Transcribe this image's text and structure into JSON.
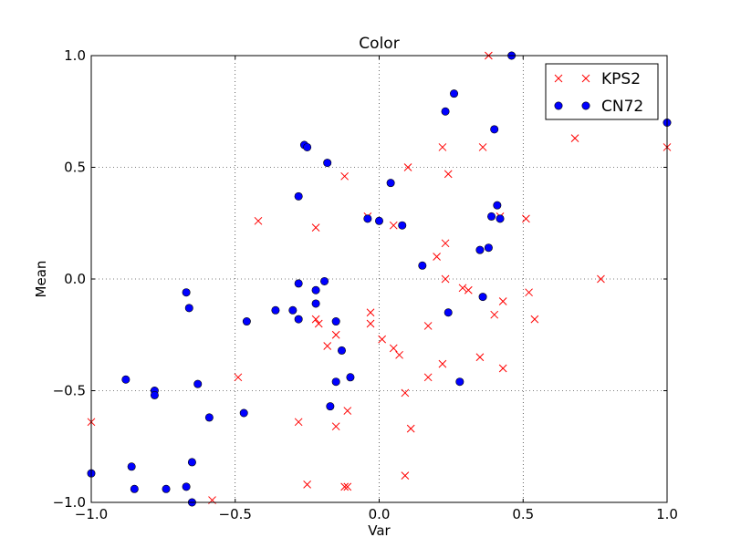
{
  "chart_data": {
    "type": "scatter",
    "title": "Color",
    "xlabel": "Var",
    "ylabel": "Mean",
    "xlim": [
      -1.0,
      1.0
    ],
    "ylim": [
      -1.0,
      1.0
    ],
    "xticks": [
      -1.0,
      -0.5,
      0.0,
      0.5,
      1.0
    ],
    "xtick_labels": [
      "−1.0",
      "−0.5",
      "0.0",
      "0.5",
      "1.0"
    ],
    "yticks": [
      -1.0,
      -0.5,
      0.0,
      0.5,
      1.0
    ],
    "ytick_labels": [
      "−1.0",
      "−0.5",
      "0.0",
      "0.5",
      "1.0"
    ],
    "grid": true,
    "legend_position": "top-right",
    "series": [
      {
        "name": "KPS2",
        "marker": "x",
        "color": "#ff0000",
        "points": [
          [
            -1.0,
            -0.64
          ],
          [
            -0.58,
            -0.99
          ],
          [
            -0.49,
            -0.44
          ],
          [
            -0.42,
            0.26
          ],
          [
            -0.28,
            -0.64
          ],
          [
            -0.25,
            -0.92
          ],
          [
            -0.22,
            0.23
          ],
          [
            -0.22,
            -0.18
          ],
          [
            -0.21,
            -0.2
          ],
          [
            -0.18,
            -0.3
          ],
          [
            -0.15,
            -0.25
          ],
          [
            -0.15,
            -0.66
          ],
          [
            -0.12,
            0.46
          ],
          [
            -0.12,
            -0.93
          ],
          [
            -0.11,
            -0.93
          ],
          [
            -0.11,
            -0.59
          ],
          [
            -0.04,
            0.28
          ],
          [
            -0.03,
            -0.15
          ],
          [
            -0.03,
            -0.2
          ],
          [
            0.01,
            -0.27
          ],
          [
            0.05,
            -0.31
          ],
          [
            0.05,
            0.24
          ],
          [
            0.07,
            -0.34
          ],
          [
            0.09,
            -0.51
          ],
          [
            0.09,
            -0.88
          ],
          [
            0.1,
            0.5
          ],
          [
            0.11,
            -0.67
          ],
          [
            0.17,
            -0.44
          ],
          [
            0.17,
            -0.21
          ],
          [
            0.2,
            0.1
          ],
          [
            0.22,
            0.59
          ],
          [
            0.22,
            -0.38
          ],
          [
            0.23,
            0.0
          ],
          [
            0.23,
            0.16
          ],
          [
            0.24,
            0.47
          ],
          [
            0.29,
            -0.04
          ],
          [
            0.31,
            -0.05
          ],
          [
            0.35,
            -0.35
          ],
          [
            0.36,
            0.59
          ],
          [
            0.38,
            1.0
          ],
          [
            0.4,
            -0.16
          ],
          [
            0.42,
            0.28
          ],
          [
            0.43,
            -0.4
          ],
          [
            0.43,
            -0.1
          ],
          [
            0.51,
            0.27
          ],
          [
            0.52,
            -0.06
          ],
          [
            0.54,
            -0.18
          ],
          [
            0.68,
            0.63
          ],
          [
            0.77,
            0.0
          ],
          [
            1.0,
            0.59
          ]
        ]
      },
      {
        "name": "CN72",
        "marker": "o",
        "color": "#0000ff",
        "points": [
          [
            -1.0,
            -0.87
          ],
          [
            -0.88,
            -0.45
          ],
          [
            -0.86,
            -0.84
          ],
          [
            -0.85,
            -0.94
          ],
          [
            -0.78,
            -0.5
          ],
          [
            -0.78,
            -0.52
          ],
          [
            -0.74,
            -0.94
          ],
          [
            -0.67,
            -0.06
          ],
          [
            -0.67,
            -0.93
          ],
          [
            -0.66,
            -0.13
          ],
          [
            -0.65,
            -0.82
          ],
          [
            -0.65,
            -1.0
          ],
          [
            -0.63,
            -0.47
          ],
          [
            -0.59,
            -0.62
          ],
          [
            -0.47,
            -0.6
          ],
          [
            -0.46,
            -0.19
          ],
          [
            -0.36,
            -0.14
          ],
          [
            -0.3,
            -0.14
          ],
          [
            -0.28,
            0.37
          ],
          [
            -0.28,
            -0.02
          ],
          [
            -0.28,
            -0.18
          ],
          [
            -0.26,
            0.6
          ],
          [
            -0.25,
            0.59
          ],
          [
            -0.22,
            -0.05
          ],
          [
            -0.22,
            -0.11
          ],
          [
            -0.19,
            -0.01
          ],
          [
            -0.18,
            0.52
          ],
          [
            -0.17,
            -0.57
          ],
          [
            -0.15,
            -0.19
          ],
          [
            -0.15,
            -0.46
          ],
          [
            -0.13,
            -0.32
          ],
          [
            -0.1,
            -0.44
          ],
          [
            -0.04,
            0.27
          ],
          [
            0.0,
            0.26
          ],
          [
            0.04,
            0.43
          ],
          [
            0.08,
            0.24
          ],
          [
            0.15,
            0.06
          ],
          [
            0.23,
            0.75
          ],
          [
            0.24,
            -0.15
          ],
          [
            0.26,
            0.83
          ],
          [
            0.28,
            -0.46
          ],
          [
            0.35,
            0.13
          ],
          [
            0.36,
            -0.08
          ],
          [
            0.38,
            0.14
          ],
          [
            0.39,
            0.28
          ],
          [
            0.4,
            0.67
          ],
          [
            0.41,
            0.33
          ],
          [
            0.42,
            0.27
          ],
          [
            0.46,
            1.0
          ],
          [
            1.0,
            0.7
          ]
        ]
      }
    ]
  }
}
